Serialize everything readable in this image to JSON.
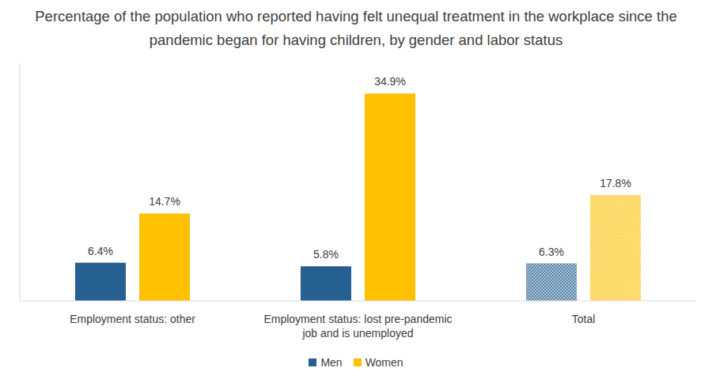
{
  "chart_data": {
    "type": "bar",
    "title": "Percentage of the population who reported having felt unequal treatment in the workplace since the pandemic began for having children, by gender and labor status",
    "categories": [
      "Employment status: other",
      "Employment status: lost pre-pandemic job and is unemployed",
      "Total"
    ],
    "series": [
      {
        "name": "Men",
        "color": "#265f91",
        "values": [
          6.4,
          5.8,
          6.3
        ],
        "value_labels": [
          "6.4%",
          "5.8%",
          "6.3%"
        ]
      },
      {
        "name": "Women",
        "color": "#ffc000",
        "values": [
          14.7,
          34.9,
          17.8
        ],
        "value_labels": [
          "14.7%",
          "34.9%",
          "17.8%"
        ]
      }
    ],
    "ylim": [
      0,
      40
    ],
    "tick_labels": "x",
    "data_labels": true,
    "grid": false,
    "legend": "bottom"
  }
}
